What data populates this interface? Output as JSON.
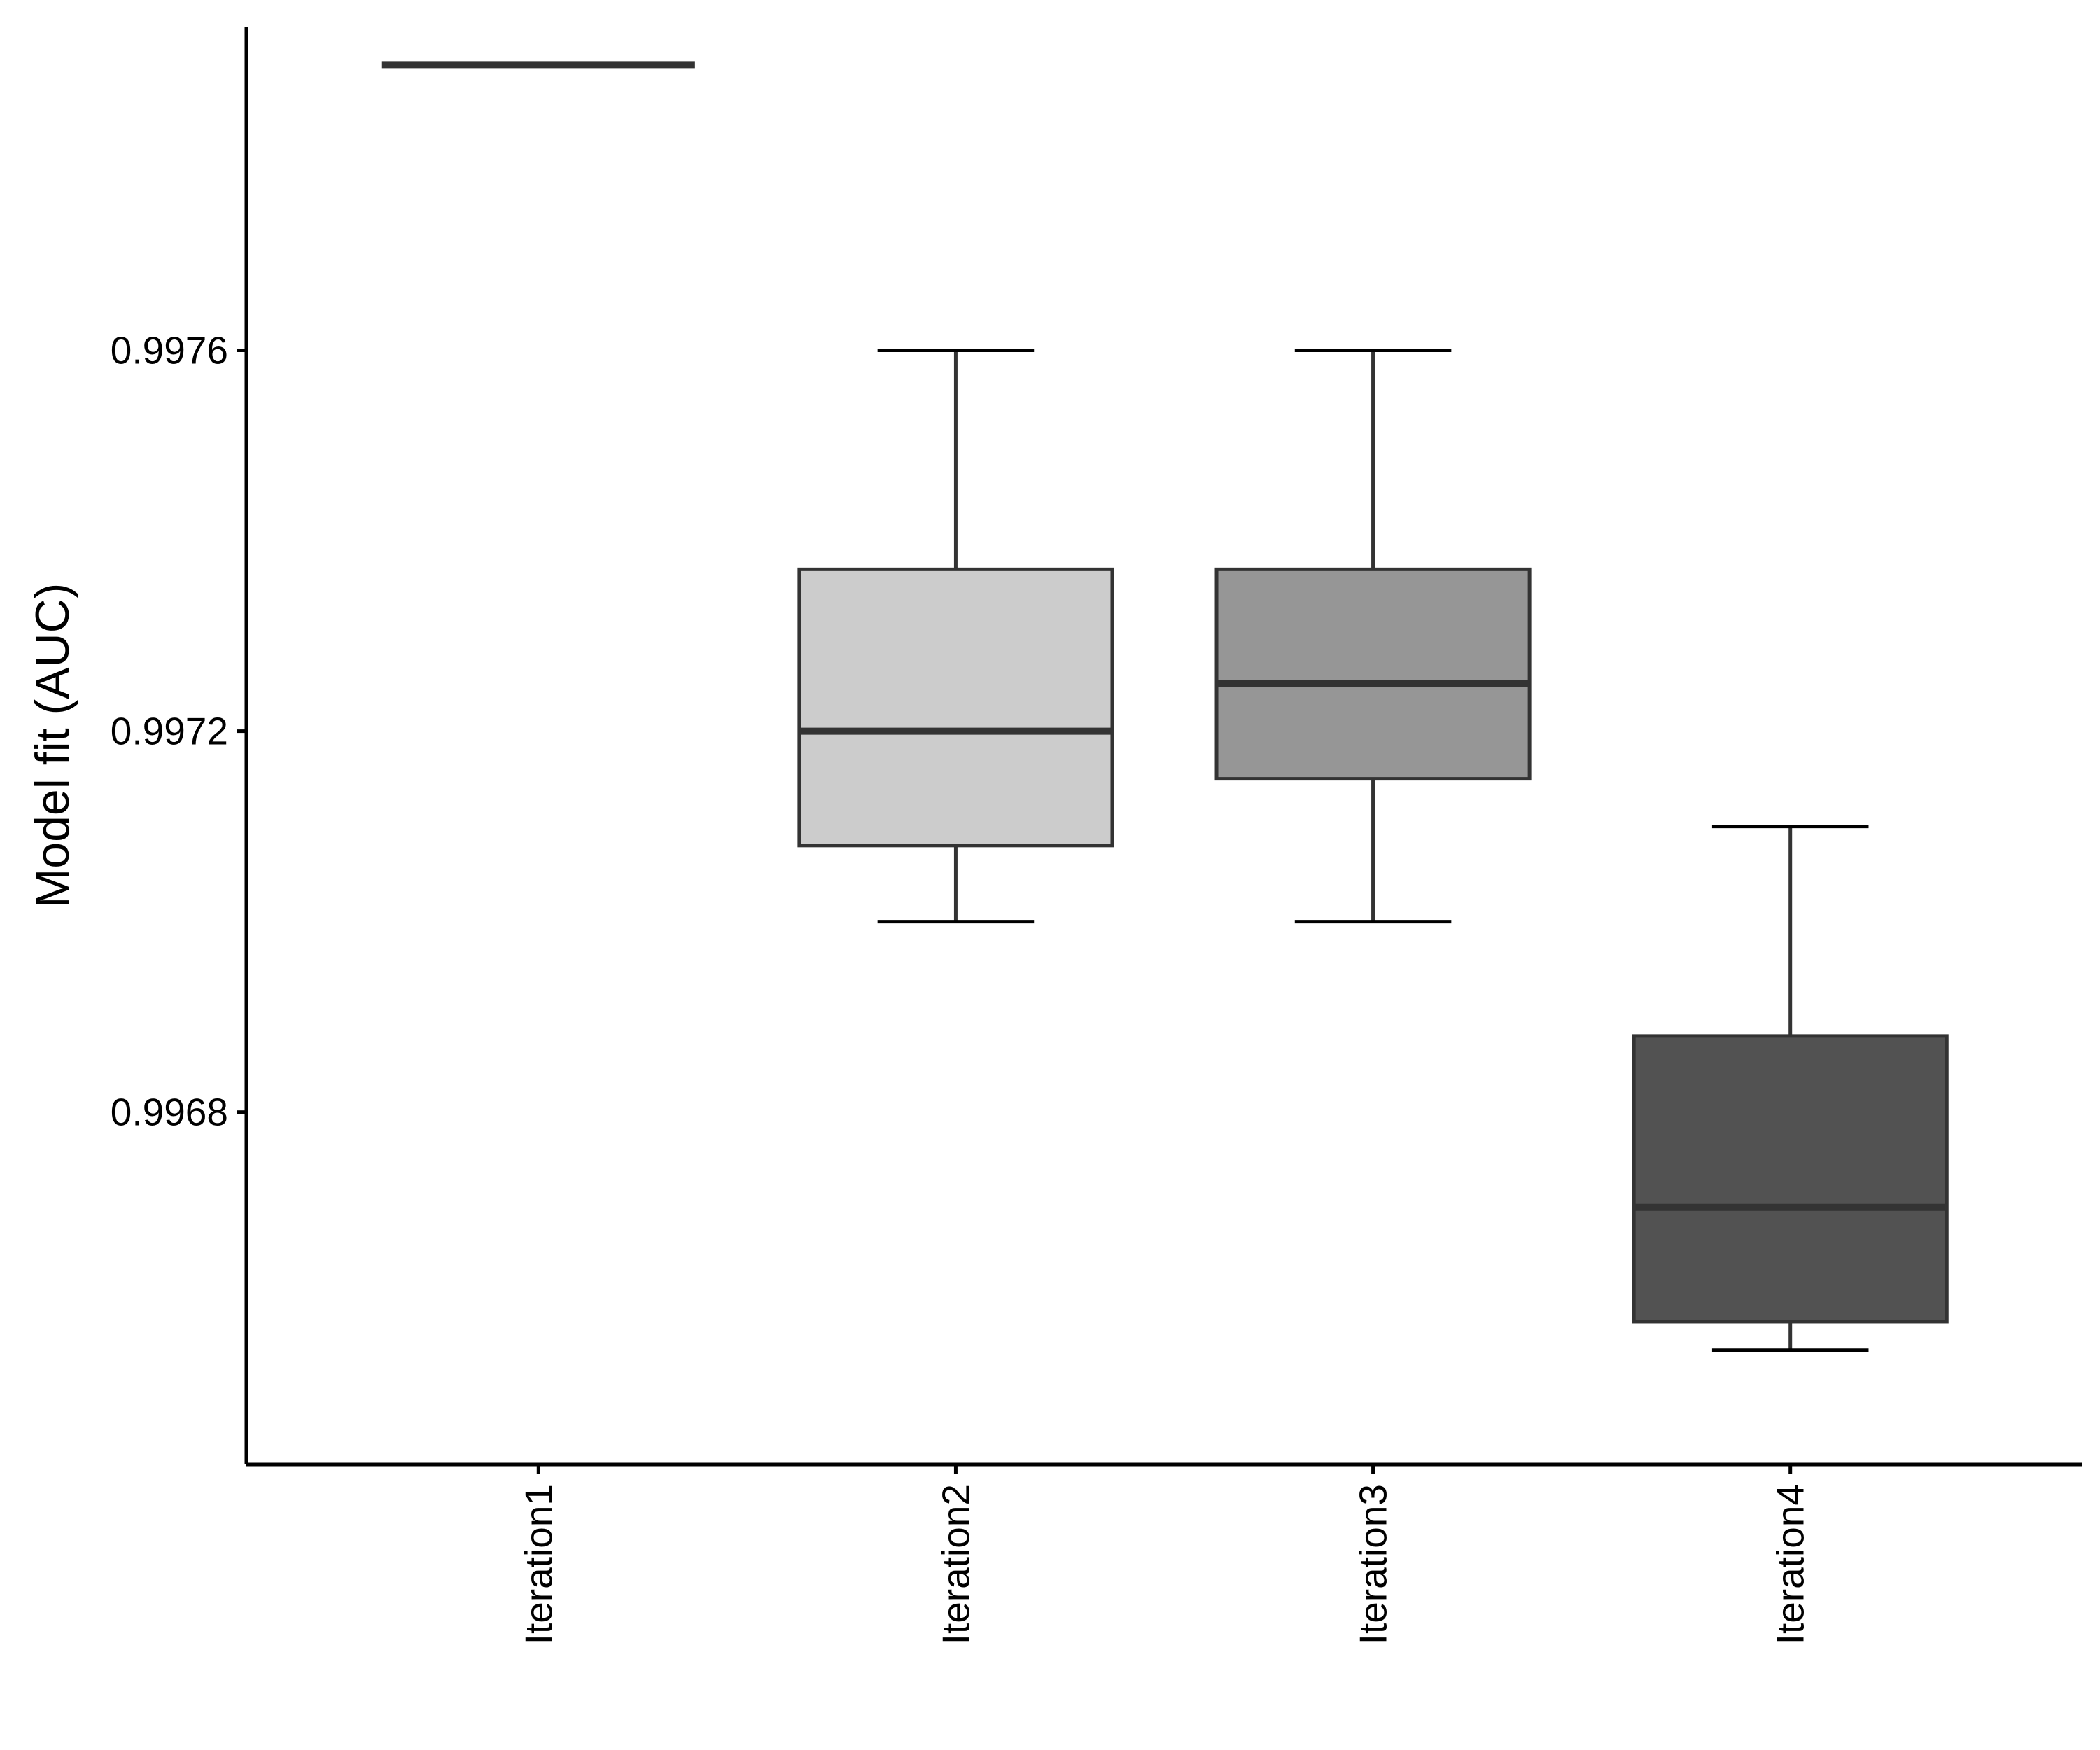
{
  "chart_data": {
    "type": "box",
    "title": "",
    "xlabel": "",
    "ylabel": "Model fit (AUC)",
    "categories": [
      "Iteration1",
      "Iteration2",
      "Iteration3",
      "Iteration4"
    ],
    "y_ticks": [
      0.9968,
      0.9972,
      0.9976
    ],
    "y_tick_labels": [
      "0.9968",
      "0.9972",
      "0.9976"
    ],
    "ylim": [
      0.99643,
      0.99794
    ],
    "grid": false,
    "legend": "none",
    "boxes": [
      {
        "category": "Iteration1",
        "min": 0.9979,
        "q1": 0.9979,
        "median": 0.9979,
        "q3": 0.9979,
        "max": 0.9979,
        "fill": "#ffffff"
      },
      {
        "category": "Iteration2",
        "min": 0.997,
        "q1": 0.99708,
        "median": 0.9972,
        "q3": 0.99737,
        "max": 0.9976,
        "fill": "#cccccc"
      },
      {
        "category": "Iteration3",
        "min": 0.997,
        "q1": 0.99715,
        "median": 0.99725,
        "q3": 0.99737,
        "max": 0.9976,
        "fill": "#969696"
      },
      {
        "category": "Iteration4",
        "min": 0.99655,
        "q1": 0.99658,
        "median": 0.9967,
        "q3": 0.99688,
        "max": 0.9971,
        "fill": "#525252"
      }
    ],
    "colors": {
      "line": "#333333",
      "axis": "#000000"
    }
  }
}
